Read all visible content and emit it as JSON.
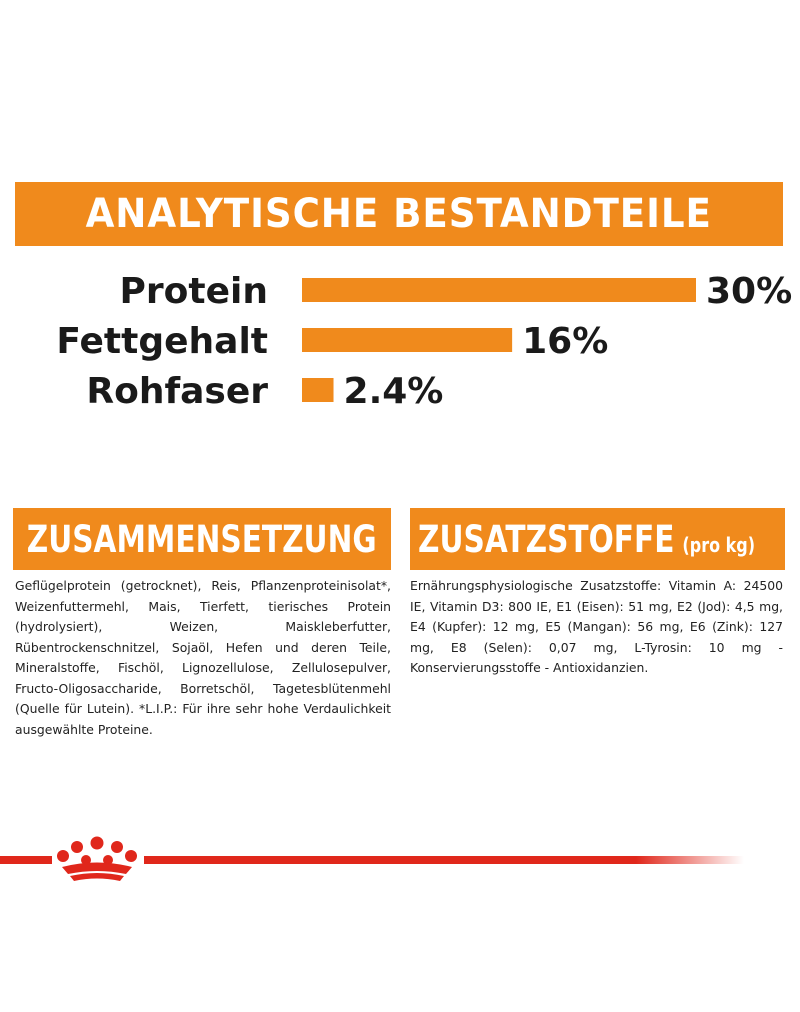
{
  "colors": {
    "accent": "#f08a1c",
    "red": "#e0271b",
    "text": "#1a1a1a"
  },
  "banner": {
    "title": "ANALYTISCHE BESTANDTEILE"
  },
  "chart_data": {
    "type": "bar",
    "orientation": "horizontal",
    "title": "ANALYTISCHE BESTANDTEILE",
    "categories": [
      "Protein",
      "Fettgehalt",
      "Rohfaser"
    ],
    "values": [
      30,
      16,
      2.4
    ],
    "value_labels": [
      "30%",
      "16%",
      "2.4%"
    ],
    "unit": "%",
    "xlim": [
      0,
      30
    ],
    "grid": false,
    "legend": "none"
  },
  "composition": {
    "title": "ZUSAMMENSETZUNG",
    "text": "Geflügelprotein (getrocknet), Reis, Pflanzenproteinisolat*, Weizenfuttermehl, Mais, Tierfett, tierisches Protein (hydrolysiert), Weizen, Maiskleberfutter, Rübentrockenschnitzel, Sojaöl, Hefen und deren Teile, Mineralstoffe, Fischöl, Lignozellulose, Zellulosepulver, Fructo-Oligosaccharide, Borretschöl, Tagetesblütenmehl (Quelle für Lutein). *L.I.P.: Für ihre sehr hohe Verdaulichkeit ausgewählte Proteine."
  },
  "additives": {
    "title": "ZUSATZSTOFFE",
    "suffix": "(pro kg)",
    "text": "Ernährungsphysiologische Zusatzstoffe: Vitamin A: 24500 IE, Vitamin D3: 800 IE, E1 (Eisen): 51 mg, E2 (Jod): 4,5 mg, E4 (Kupfer): 12 mg, E5 (Mangan): 56 mg, E6 (Zink): 127 mg, E8 (Selen): 0,07 mg, L-Tyrosin: 10 mg - Konservierungsstoffe - Antioxidanzien."
  },
  "footer": {
    "logo_icon": "royal-canin-crown-icon"
  }
}
